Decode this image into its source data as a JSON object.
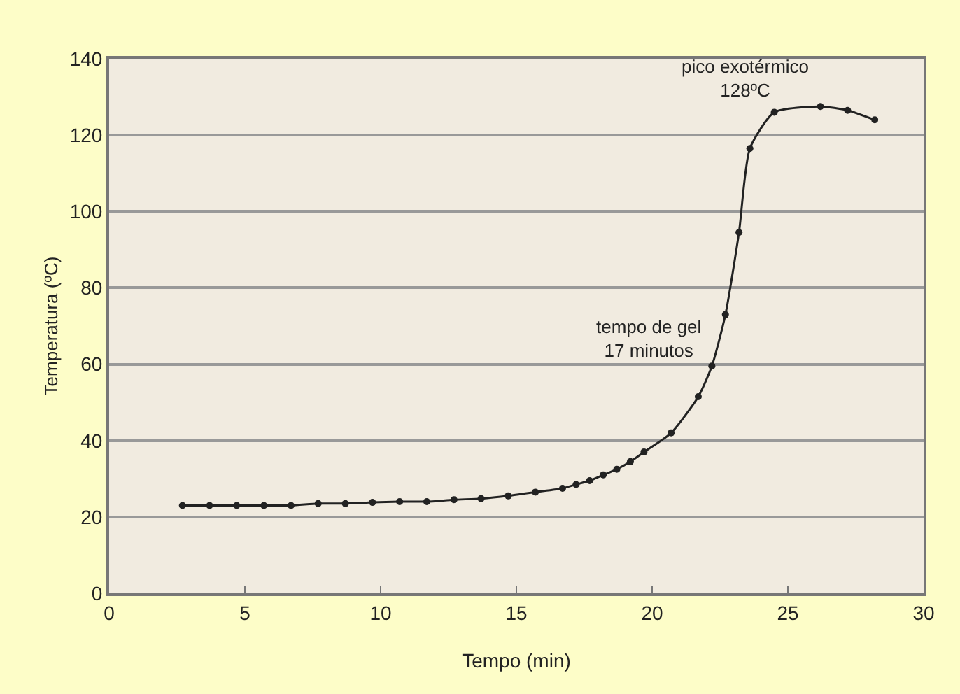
{
  "chart_data": {
    "type": "line",
    "xlabel": "Tempo (min)",
    "ylabel": "Temperatura (ºC)",
    "x": [
      2.7,
      3.7,
      4.7,
      5.7,
      6.7,
      7.7,
      8.7,
      9.7,
      10.7,
      11.7,
      12.7,
      13.7,
      14.7,
      15.7,
      16.7,
      17.2,
      17.7,
      18.2,
      18.7,
      19.2,
      19.7,
      20.7,
      21.7,
      22.2,
      22.7,
      23.2,
      23.6,
      24.5,
      26.2,
      27.2,
      28.2
    ],
    "series": [
      {
        "color": "#222222",
        "values": [
          23,
          23,
          23,
          23,
          23,
          23.5,
          23.5,
          23.8,
          24,
          24,
          24.5,
          24.8,
          25.5,
          26.5,
          27.5,
          28.5,
          29.5,
          31,
          32.5,
          34.5,
          37,
          42,
          51.5,
          59.5,
          73,
          94.5,
          116.5,
          126,
          127.5,
          126.5,
          124
        ]
      }
    ],
    "xlim": [
      0,
      30
    ],
    "xticks": [
      0,
      5,
      10,
      15,
      20,
      25,
      30
    ],
    "ylim": [
      0,
      140
    ],
    "yticks": [
      0,
      20,
      40,
      60,
      80,
      100,
      120,
      140
    ],
    "grid": "y",
    "marker": "circle",
    "line_style": "solid",
    "legend": false,
    "annotations": [
      {
        "text": "pico exotérmico\n128ºC",
        "x": 26.2,
        "y": 127.5
      },
      {
        "text": "tempo de gel\n17 minutos",
        "x": 22.2,
        "y": 59.5
      }
    ]
  }
}
